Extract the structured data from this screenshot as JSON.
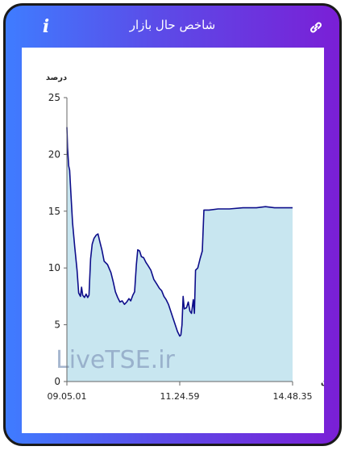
{
  "header": {
    "title": "شاخص حال بازار",
    "info_icon_glyph": "i",
    "link_icon": "link-icon"
  },
  "colors": {
    "gradient_start": "#3f7cff",
    "gradient_end": "#7a1fd6",
    "line": "#0d0d8a",
    "area": "#c8e6f0",
    "watermark": "#8aa0c0"
  },
  "watermark": "LiveTSE.ir",
  "chart_data": {
    "type": "area",
    "ylabel": "درصد",
    "xlabel": "زمان",
    "ylim": [
      0,
      25
    ],
    "yticks": [
      "0",
      "5",
      "10",
      "15",
      "20",
      "25"
    ],
    "xticks": [
      {
        "label": "09.05.01",
        "t": 0
      },
      {
        "label": "11.24.59",
        "t": 0.5
      },
      {
        "label": "14.48.35",
        "t": 1
      }
    ],
    "grid": false,
    "series": [
      {
        "points": [
          [
            0,
            22.4
          ],
          [
            0.003,
            20.6
          ],
          [
            0.008,
            19.0
          ],
          [
            0.012,
            18.6
          ],
          [
            0.018,
            16.5
          ],
          [
            0.025,
            14.0
          ],
          [
            0.035,
            11.8
          ],
          [
            0.045,
            9.8
          ],
          [
            0.052,
            7.8
          ],
          [
            0.06,
            7.5
          ],
          [
            0.065,
            8.3
          ],
          [
            0.07,
            7.6
          ],
          [
            0.078,
            7.4
          ],
          [
            0.085,
            7.7
          ],
          [
            0.092,
            7.4
          ],
          [
            0.098,
            7.6
          ],
          [
            0.105,
            10.8
          ],
          [
            0.112,
            12.1
          ],
          [
            0.12,
            12.6
          ],
          [
            0.13,
            12.9
          ],
          [
            0.138,
            13.0
          ],
          [
            0.146,
            12.3
          ],
          [
            0.155,
            11.6
          ],
          [
            0.165,
            10.6
          ],
          [
            0.18,
            10.3
          ],
          [
            0.195,
            9.6
          ],
          [
            0.205,
            8.8
          ],
          [
            0.215,
            7.9
          ],
          [
            0.225,
            7.4
          ],
          [
            0.235,
            7.0
          ],
          [
            0.245,
            7.1
          ],
          [
            0.255,
            6.8
          ],
          [
            0.265,
            7.0
          ],
          [
            0.275,
            7.3
          ],
          [
            0.283,
            7.1
          ],
          [
            0.292,
            7.6
          ],
          [
            0.3,
            7.9
          ],
          [
            0.308,
            10.3
          ],
          [
            0.314,
            11.6
          ],
          [
            0.322,
            11.5
          ],
          [
            0.33,
            11.0
          ],
          [
            0.34,
            10.9
          ],
          [
            0.35,
            10.5
          ],
          [
            0.36,
            10.2
          ],
          [
            0.372,
            9.8
          ],
          [
            0.385,
            9.0
          ],
          [
            0.398,
            8.6
          ],
          [
            0.41,
            8.2
          ],
          [
            0.42,
            8.0
          ],
          [
            0.43,
            7.5
          ],
          [
            0.44,
            7.2
          ],
          [
            0.45,
            6.8
          ],
          [
            0.46,
            6.2
          ],
          [
            0.47,
            5.6
          ],
          [
            0.48,
            5.0
          ],
          [
            0.49,
            4.4
          ],
          [
            0.5,
            4.0
          ],
          [
            0.505,
            4.1
          ],
          [
            0.51,
            5.0
          ],
          [
            0.515,
            7.5
          ],
          [
            0.52,
            6.4
          ],
          [
            0.53,
            6.5
          ],
          [
            0.538,
            7.0
          ],
          [
            0.545,
            6.2
          ],
          [
            0.552,
            6.0
          ],
          [
            0.56,
            7.2
          ],
          [
            0.565,
            6.0
          ],
          [
            0.57,
            9.8
          ],
          [
            0.58,
            10.0
          ],
          [
            0.59,
            10.8
          ],
          [
            0.6,
            11.5
          ],
          [
            0.607,
            15.1
          ],
          [
            0.63,
            15.1
          ],
          [
            0.67,
            15.2
          ],
          [
            0.72,
            15.2
          ],
          [
            0.78,
            15.3
          ],
          [
            0.84,
            15.3
          ],
          [
            0.88,
            15.4
          ],
          [
            0.92,
            15.3
          ],
          [
            1,
            15.3
          ]
        ]
      }
    ]
  }
}
